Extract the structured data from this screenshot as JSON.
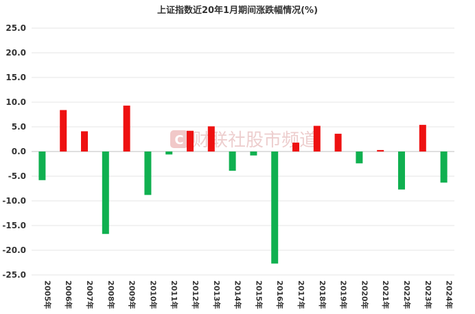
{
  "chart_data": {
    "type": "bar",
    "title": "上证指数近20年1月期间涨跌幅情况(%)",
    "xlabel": "",
    "ylabel": "",
    "ylim": [
      -25,
      25
    ],
    "yticks": [
      "25.0",
      "20.0",
      "15.0",
      "10.0",
      "5.0",
      "0.0",
      "-5.0",
      "-10.0",
      "-15.0",
      "-20.0",
      "-25.0"
    ],
    "grid": true,
    "legend": "none",
    "categories": [
      "2005年",
      "2006年",
      "2007年",
      "2008年",
      "2009年",
      "2010年",
      "2011年",
      "2012年",
      "2013年",
      "2014年",
      "2015年",
      "2016年",
      "2017年",
      "2018年",
      "2019年",
      "2020年",
      "2021年",
      "2022年",
      "2023年",
      "2024年"
    ],
    "values": [
      -5.8,
      8.4,
      4.1,
      -16.7,
      9.3,
      -8.8,
      -0.6,
      4.2,
      5.1,
      -3.9,
      -0.8,
      -22.7,
      1.8,
      5.2,
      3.6,
      -2.4,
      0.3,
      -7.7,
      5.4,
      -6.3
    ],
    "colors": {
      "positive": "#ee1111",
      "negative": "#10b050"
    }
  },
  "watermark": {
    "logo_letter": "C",
    "text": "财联社股市频道"
  }
}
